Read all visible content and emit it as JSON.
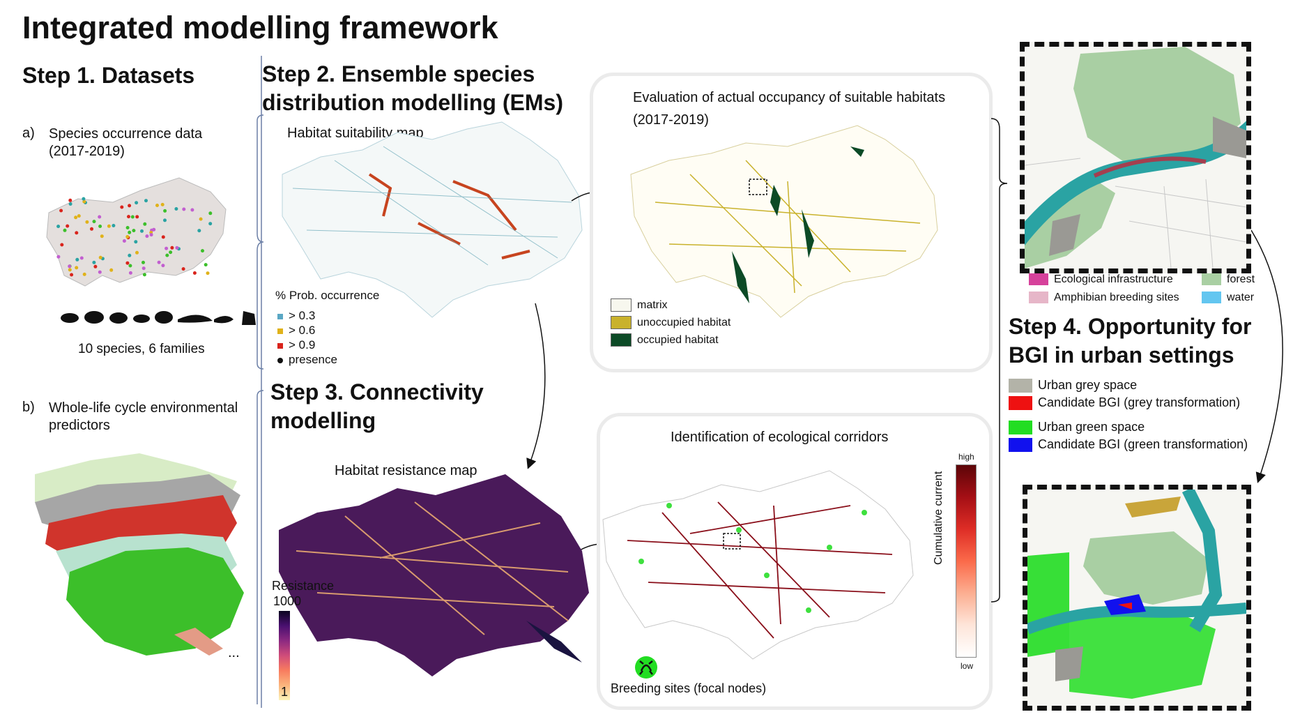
{
  "title": "Integrated modelling framework",
  "step1": {
    "heading": "Step 1. Datasets",
    "a_marker": "a)",
    "a_label_line1": "Species occurrence data",
    "a_label_line2": "(2017-2019)",
    "species_count": "10 species, 6 families",
    "b_marker": "b)",
    "b_label_line1": "Whole-life cycle environmental",
    "b_label_line2": "predictors",
    "ellipsis": "..."
  },
  "step2": {
    "heading_line1": "Step 2. Ensemble species",
    "heading_line2": "distribution modelling (EMs)",
    "map_title": "Habitat suitability map",
    "legend_title": "% Prob. occurrence",
    "legend": [
      {
        "label": "> 0.3",
        "color": "#5aa7c4"
      },
      {
        "label": "> 0.6",
        "color": "#e0b21a"
      },
      {
        "label": "> 0.9",
        "color": "#d9241c"
      },
      {
        "label": "presence",
        "color": "#111111"
      }
    ]
  },
  "occupancy": {
    "title_line1": "Evaluation of actual occupancy of suitable habitats",
    "title_line2": "(2017-2019)",
    "legend": [
      {
        "label": "matrix",
        "color": "#f7f7ee"
      },
      {
        "label": "unoccupied habitat",
        "color": "#c9b22c"
      },
      {
        "label": "occupied habitat",
        "color": "#0c4a26"
      }
    ]
  },
  "step3": {
    "heading_line1": "Step 3. Connectivity",
    "heading_line2": "modelling",
    "map_title": "Habitat resistance map",
    "resistance_label": "Resistance",
    "resistance_max": "1000",
    "resistance_min": "1"
  },
  "corridors": {
    "title": "Identification of ecological  corridors",
    "scale_high": "high",
    "scale_low": "low",
    "scale_label": "Cumulative current",
    "breeding_label": "Breeding sites (focal nodes)"
  },
  "top_map_legend": [
    {
      "label": "Ecological infrastructure",
      "color": "#d6419b"
    },
    {
      "label": "forest",
      "color": "#a9cfa3"
    },
    {
      "label": "Amphibian breeding sites",
      "color": "#e6b6c8"
    },
    {
      "label": "water",
      "color": "#63c6f0"
    }
  ],
  "step4": {
    "heading_line1": "Step 4. Opportunity for",
    "heading_line2": "BGI in urban settings",
    "legend": [
      {
        "label": "Urban grey space",
        "color": "#b3b3a8"
      },
      {
        "label": "Candidate BGI (grey transformation)",
        "color": "#ee1111"
      },
      {
        "label": "Urban green space",
        "color": "#22dd22"
      },
      {
        "label": "Candidate BGI (green transformation)",
        "color": "#1111ee"
      }
    ]
  }
}
